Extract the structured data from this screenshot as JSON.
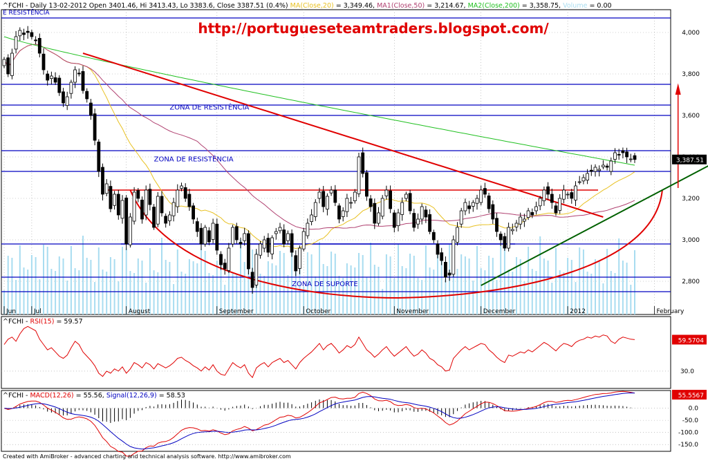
{
  "colors": {
    "candle_up": "#ffffff",
    "candle_down": "#000000",
    "volume": "#a8dcf0",
    "ma20": "#e8c020",
    "ma50": "#b04070",
    "ma200": "#20c020",
    "zone_line": "#0000c0",
    "trend_red": "#e00000",
    "trend_green": "#006000",
    "rsi": "#e00000",
    "macd": "#e00000",
    "signal": "#0000c0",
    "hist": "#000000",
    "grid": "#a0a0a0"
  },
  "header": {
    "ticker": "^FCHI",
    "parts": [
      {
        "text": "^FCHI - Daily 13-02-2012 Open 3401.46, Hi 3413.43, Lo 3383.6, Close 3387.51 (0.4%) ",
        "color": "#000000"
      },
      {
        "text": "MA(Close,20)",
        "color": "#e8c020"
      },
      {
        "text": " = 3,349.46, ",
        "color": "#000000"
      },
      {
        "text": "MA1(Close,50)",
        "color": "#b04070"
      },
      {
        "text": " = 3,214.67, ",
        "color": "#000000"
      },
      {
        "text": "MA2(Close,200)",
        "color": "#20c020"
      },
      {
        "text": " = 3,358.75, ",
        "color": "#000000"
      },
      {
        "text": "Volume",
        "color": "#a8dcf0"
      },
      {
        "text": " = 0.00",
        "color": "#000000"
      }
    ],
    "sub_label": "E RESISTÊNCIA"
  },
  "watermark_url": "http://portugueseteamtraders.blogspot.com/",
  "footer_text": "Created with AmiBroker - advanced charting and technical analysis software. http://www.amibroker.com",
  "chart_data": [
    {
      "type": "candlestick",
      "title": "^FCHI - Daily",
      "x_labels": [
        {
          "label": "Jun",
          "bar": 0
        },
        {
          "label": "Jul",
          "bar": 7
        },
        {
          "label": "August",
          "bar": 31
        },
        {
          "label": "September",
          "bar": 54
        },
        {
          "label": "October",
          "bar": 76
        },
        {
          "label": "November",
          "bar": 99
        },
        {
          "label": "December",
          "bar": 121
        },
        {
          "label": "2012",
          "bar": 143
        },
        {
          "label": "February",
          "bar": 165
        }
      ],
      "y_ticks": [
        2800,
        3000,
        3200,
        3400,
        3600,
        3800,
        4000
      ],
      "ylim": [
        2640,
        4110
      ],
      "last_close_label": "3,387.51",
      "series_close": [
        3870,
        3800,
        3900,
        3980,
        4010,
        3990,
        4000,
        3980,
        3960,
        3900,
        3820,
        3770,
        3790,
        3760,
        3710,
        3660,
        3690,
        3760,
        3820,
        3800,
        3720,
        3680,
        3600,
        3480,
        3330,
        3220,
        3270,
        3150,
        3220,
        3120,
        3190,
        2980,
        3110,
        3230,
        3200,
        3100,
        3240,
        3170,
        3060,
        3210,
        3130,
        3080,
        3120,
        3180,
        3240,
        3260,
        3200,
        3160,
        3100,
        3040,
        2980,
        3060,
        2990,
        3080,
        2950,
        2880,
        2860,
        2960,
        3060,
        3000,
        2980,
        3030,
        2860,
        2770,
        2930,
        2980,
        3000,
        2940,
        3010,
        3040,
        3060,
        2980,
        3030,
        2940,
        2850,
        2960,
        3040,
        3080,
        3120,
        3180,
        3230,
        3160,
        3210,
        3240,
        3180,
        3100,
        3140,
        3200,
        3180,
        3230,
        3400,
        3320,
        3210,
        3160,
        3080,
        3130,
        3200,
        3240,
        3150,
        3060,
        3130,
        3180,
        3220,
        3140,
        3060,
        3100,
        3160,
        3110,
        3040,
        3000,
        2930,
        2900,
        2820,
        2830,
        3000,
        3060,
        3140,
        3180,
        3150,
        3180,
        3200,
        3240,
        3220,
        3150,
        3100,
        3040,
        3000,
        2960,
        3060,
        3050,
        3080,
        3110,
        3100,
        3140,
        3120,
        3160,
        3200,
        3240,
        3220,
        3180,
        3130,
        3200,
        3240,
        3220,
        3200,
        3260,
        3280,
        3300,
        3320,
        3330,
        3350,
        3340,
        3360,
        3350,
        3380,
        3420,
        3410,
        3420,
        3400,
        3390,
        3387.51
      ],
      "ma20_last": 3349.46,
      "ma50_last": 3214.67,
      "ma200_last": 3358.75,
      "annotations": [
        {
          "text": "ZONA DE RESISTÊNCIA",
          "bar": 42,
          "y": 3628
        },
        {
          "text": "ZONA DE RESISTÊNCIA",
          "bar": 38,
          "y": 3378
        },
        {
          "text": "ZONA DE SUPORTE",
          "bar": 73,
          "y": 2777
        }
      ],
      "horizontal_levels": [
        2750,
        2820,
        2980,
        3330,
        3430,
        3600,
        3650,
        3750,
        4070
      ]
    },
    {
      "type": "line",
      "title": "^FCHI - RSI(15) = 59.57",
      "series": [
        {
          "name": "RSI(15)",
          "last": 59.57
        }
      ],
      "y_ticks": [
        30.0
      ],
      "last_label": "59.5704",
      "values": [
        55,
        60,
        62,
        58,
        65,
        70,
        72,
        70,
        68,
        60,
        55,
        50,
        52,
        48,
        44,
        42,
        45,
        52,
        58,
        55,
        48,
        44,
        40,
        35,
        28,
        25,
        30,
        28,
        32,
        30,
        34,
        28,
        32,
        38,
        36,
        33,
        38,
        36,
        32,
        37,
        35,
        33,
        35,
        38,
        42,
        43,
        40,
        38,
        35,
        33,
        30,
        34,
        31,
        36,
        30,
        27,
        26,
        32,
        38,
        35,
        33,
        36,
        28,
        24,
        33,
        36,
        38,
        34,
        38,
        40,
        42,
        38,
        40,
        36,
        32,
        38,
        42,
        45,
        48,
        52,
        56,
        50,
        54,
        56,
        52,
        47,
        50,
        54,
        52,
        55,
        62,
        56,
        50,
        47,
        43,
        46,
        50,
        53,
        48,
        44,
        47,
        50,
        53,
        48,
        44,
        46,
        50,
        47,
        42,
        40,
        36,
        34,
        30,
        31,
        42,
        46,
        50,
        53,
        50,
        52,
        54,
        56,
        55,
        50,
        47,
        43,
        40,
        38,
        45,
        44,
        46,
        48,
        47,
        50,
        48,
        51,
        54,
        57,
        55,
        52,
        49,
        53,
        56,
        55,
        53,
        57,
        59,
        60,
        62,
        61,
        63,
        62,
        64,
        63,
        58,
        56,
        60,
        62,
        61,
        60,
        59.57
      ]
    },
    {
      "type": "line",
      "title": "^FCHI - MACD(12,26) = 55.56, Signal(12,26,9) = 58.53",
      "series": [
        {
          "name": "MACD(12,26)",
          "last": 55.56
        },
        {
          "name": "Signal(12,26,9)",
          "last": 58.53
        }
      ],
      "y_ticks": [
        0.0,
        -50.0,
        -100.0,
        -150.0
      ],
      "last_label": "55.5567",
      "ylim": [
        -175,
        70
      ]
    }
  ]
}
